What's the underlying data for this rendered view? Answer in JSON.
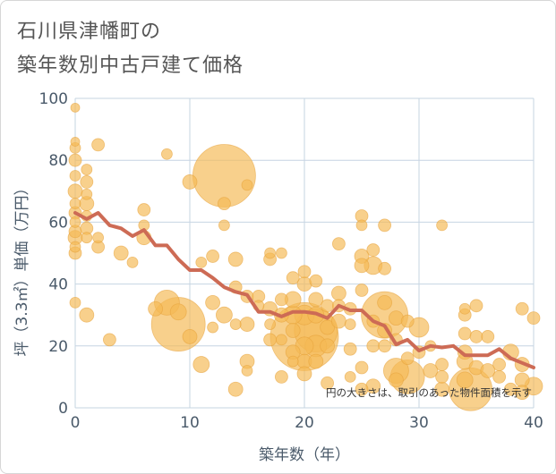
{
  "title_line1": "石川県津幡町の",
  "title_line2": "築年数別中古戸建て価格",
  "colors": {
    "bubble_fill": "#f5b955",
    "bubble_stroke": "#e6a23a",
    "line": "#cd6b55",
    "grid": "#c6d4e2",
    "axis_text": "#4a5a6a"
  },
  "chart_data": {
    "type": "scatter",
    "title": "石川県津幡町の築年数別中古戸建て価格",
    "xlabel": "築年数（年）",
    "ylabel": "坪（3.3㎡）単価（万円）",
    "xlim": [
      0,
      40
    ],
    "ylim": [
      0,
      100
    ],
    "xticks": [
      "0",
      "10",
      "20",
      "30",
      "40"
    ],
    "yticks": [
      "0",
      "20",
      "40",
      "60",
      "80",
      "100"
    ],
    "note": "円の大きさは、取引のあった物件面積を示す",
    "points": [
      {
        "x": 0,
        "y": 97,
        "s": 5
      },
      {
        "x": 0,
        "y": 86,
        "s": 5
      },
      {
        "x": 0,
        "y": 84,
        "s": 6
      },
      {
        "x": 0,
        "y": 80,
        "s": 7
      },
      {
        "x": 0,
        "y": 75,
        "s": 6
      },
      {
        "x": 0,
        "y": 70,
        "s": 8
      },
      {
        "x": 0,
        "y": 66,
        "s": 6
      },
      {
        "x": 0,
        "y": 63,
        "s": 7
      },
      {
        "x": 0,
        "y": 60,
        "s": 6
      },
      {
        "x": 0,
        "y": 57,
        "s": 7
      },
      {
        "x": 0,
        "y": 55,
        "s": 8
      },
      {
        "x": 0,
        "y": 52,
        "s": 6
      },
      {
        "x": 0,
        "y": 50,
        "s": 7
      },
      {
        "x": 0,
        "y": 34,
        "s": 6
      },
      {
        "x": 1,
        "y": 77,
        "s": 6
      },
      {
        "x": 1,
        "y": 73,
        "s": 7
      },
      {
        "x": 1,
        "y": 69,
        "s": 6
      },
      {
        "x": 1,
        "y": 66,
        "s": 8
      },
      {
        "x": 1,
        "y": 62,
        "s": 6
      },
      {
        "x": 1,
        "y": 58,
        "s": 7
      },
      {
        "x": 1,
        "y": 55,
        "s": 6
      },
      {
        "x": 1,
        "y": 30,
        "s": 8
      },
      {
        "x": 2,
        "y": 85,
        "s": 7
      },
      {
        "x": 2,
        "y": 55,
        "s": 6
      },
      {
        "x": 2,
        "y": 52,
        "s": 7
      },
      {
        "x": 3,
        "y": 22,
        "s": 7
      },
      {
        "x": 4,
        "y": 50,
        "s": 8
      },
      {
        "x": 5,
        "y": 47,
        "s": 6
      },
      {
        "x": 6,
        "y": 64,
        "s": 7
      },
      {
        "x": 6,
        "y": 59,
        "s": 6
      },
      {
        "x": 6,
        "y": 55,
        "s": 8
      },
      {
        "x": 7,
        "y": 32,
        "s": 8
      },
      {
        "x": 8,
        "y": 34,
        "s": 14
      },
      {
        "x": 8,
        "y": 82,
        "s": 6
      },
      {
        "x": 9,
        "y": 31,
        "s": 9
      },
      {
        "x": 9,
        "y": 27,
        "s": 30
      },
      {
        "x": 10,
        "y": 73,
        "s": 8
      },
      {
        "x": 10,
        "y": 23,
        "s": 8
      },
      {
        "x": 11,
        "y": 14,
        "s": 9
      },
      {
        "x": 11,
        "y": 47,
        "s": 6
      },
      {
        "x": 12,
        "y": 49,
        "s": 7
      },
      {
        "x": 12,
        "y": 34,
        "s": 8
      },
      {
        "x": 12,
        "y": 26,
        "s": 6
      },
      {
        "x": 13,
        "y": 75,
        "s": 35
      },
      {
        "x": 13,
        "y": 66,
        "s": 7
      },
      {
        "x": 13,
        "y": 59,
        "s": 6
      },
      {
        "x": 13,
        "y": 30,
        "s": 9
      },
      {
        "x": 14,
        "y": 48,
        "s": 8
      },
      {
        "x": 14,
        "y": 39,
        "s": 7
      },
      {
        "x": 14,
        "y": 27,
        "s": 6
      },
      {
        "x": 14,
        "y": 6,
        "s": 8
      },
      {
        "x": 15,
        "y": 72,
        "s": 6
      },
      {
        "x": 15,
        "y": 36,
        "s": 7
      },
      {
        "x": 15,
        "y": 27,
        "s": 8
      },
      {
        "x": 15,
        "y": 15,
        "s": 8
      },
      {
        "x": 15,
        "y": 12,
        "s": 6
      },
      {
        "x": 16,
        "y": 36,
        "s": 7
      },
      {
        "x": 16,
        "y": 33,
        "s": 6
      },
      {
        "x": 17,
        "y": 50,
        "s": 6
      },
      {
        "x": 17,
        "y": 48,
        "s": 7
      },
      {
        "x": 17,
        "y": 32,
        "s": 8
      },
      {
        "x": 17,
        "y": 27,
        "s": 6
      },
      {
        "x": 17,
        "y": 22,
        "s": 7
      },
      {
        "x": 18,
        "y": 50,
        "s": 6
      },
      {
        "x": 18,
        "y": 35,
        "s": 7
      },
      {
        "x": 18,
        "y": 30,
        "s": 8
      },
      {
        "x": 18,
        "y": 22,
        "s": 6
      },
      {
        "x": 18,
        "y": 10,
        "s": 7
      },
      {
        "x": 19,
        "y": 42,
        "s": 7
      },
      {
        "x": 19,
        "y": 35,
        "s": 9
      },
      {
        "x": 19,
        "y": 30,
        "s": 10
      },
      {
        "x": 19,
        "y": 25,
        "s": 8
      },
      {
        "x": 19,
        "y": 18,
        "s": 8
      },
      {
        "x": 19,
        "y": 15,
        "s": 6
      },
      {
        "x": 20,
        "y": 44,
        "s": 7
      },
      {
        "x": 20,
        "y": 40,
        "s": 8
      },
      {
        "x": 20,
        "y": 30,
        "s": 11
      },
      {
        "x": 20,
        "y": 23,
        "s": 38
      },
      {
        "x": 20,
        "y": 20,
        "s": 10
      },
      {
        "x": 20,
        "y": 15,
        "s": 8
      },
      {
        "x": 20,
        "y": 11,
        "s": 8
      },
      {
        "x": 21,
        "y": 41,
        "s": 7
      },
      {
        "x": 21,
        "y": 35,
        "s": 8
      },
      {
        "x": 21,
        "y": 30,
        "s": 9
      },
      {
        "x": 21,
        "y": 25,
        "s": 24
      },
      {
        "x": 21,
        "y": 20,
        "s": 12
      },
      {
        "x": 21,
        "y": 15,
        "s": 8
      },
      {
        "x": 22,
        "y": 33,
        "s": 7
      },
      {
        "x": 22,
        "y": 26,
        "s": 8
      },
      {
        "x": 22,
        "y": 20,
        "s": 8
      },
      {
        "x": 22,
        "y": 8,
        "s": 7
      },
      {
        "x": 23,
        "y": 53,
        "s": 7
      },
      {
        "x": 23,
        "y": 37,
        "s": 8
      },
      {
        "x": 23,
        "y": 33,
        "s": 7
      },
      {
        "x": 23,
        "y": 28,
        "s": 8
      },
      {
        "x": 24,
        "y": 32,
        "s": 7
      },
      {
        "x": 24,
        "y": 27,
        "s": 6
      },
      {
        "x": 24,
        "y": 19,
        "s": 7
      },
      {
        "x": 24,
        "y": 10,
        "s": 6
      },
      {
        "x": 25,
        "y": 62,
        "s": 7
      },
      {
        "x": 25,
        "y": 59,
        "s": 6
      },
      {
        "x": 25,
        "y": 49,
        "s": 8
      },
      {
        "x": 25,
        "y": 46,
        "s": 8
      },
      {
        "x": 25,
        "y": 38,
        "s": 7
      },
      {
        "x": 25,
        "y": 13,
        "s": 7
      },
      {
        "x": 25,
        "y": 6,
        "s": 7
      },
      {
        "x": 26,
        "y": 51,
        "s": 7
      },
      {
        "x": 26,
        "y": 46,
        "s": 10
      },
      {
        "x": 26,
        "y": 28,
        "s": 7
      },
      {
        "x": 26,
        "y": 20,
        "s": 7
      },
      {
        "x": 26,
        "y": 7,
        "s": 8
      },
      {
        "x": 27,
        "y": 59,
        "s": 7
      },
      {
        "x": 27,
        "y": 45,
        "s": 7
      },
      {
        "x": 27,
        "y": 34,
        "s": 8
      },
      {
        "x": 27,
        "y": 30,
        "s": 26
      },
      {
        "x": 27,
        "y": 25,
        "s": 8
      },
      {
        "x": 27,
        "y": 20,
        "s": 7
      },
      {
        "x": 28,
        "y": 29,
        "s": 8
      },
      {
        "x": 28,
        "y": 22,
        "s": 7
      },
      {
        "x": 28,
        "y": 12,
        "s": 14
      },
      {
        "x": 28,
        "y": 9,
        "s": 8
      },
      {
        "x": 29,
        "y": 10,
        "s": 19
      },
      {
        "x": 29,
        "y": 16,
        "s": 7
      },
      {
        "x": 29,
        "y": 28,
        "s": 7
      },
      {
        "x": 30,
        "y": 26,
        "s": 11
      },
      {
        "x": 30,
        "y": 18,
        "s": 7
      },
      {
        "x": 31,
        "y": 12,
        "s": 8
      },
      {
        "x": 31,
        "y": 20,
        "s": 6
      },
      {
        "x": 32,
        "y": 59,
        "s": 6
      },
      {
        "x": 32,
        "y": 14,
        "s": 7
      },
      {
        "x": 32,
        "y": 10,
        "s": 7
      },
      {
        "x": 32,
        "y": 6,
        "s": 8
      },
      {
        "x": 34,
        "y": 32,
        "s": 6
      },
      {
        "x": 34,
        "y": 30,
        "s": 7
      },
      {
        "x": 34,
        "y": 24,
        "s": 7
      },
      {
        "x": 34,
        "y": 18,
        "s": 8
      },
      {
        "x": 34,
        "y": 15,
        "s": 9
      },
      {
        "x": 34,
        "y": 9,
        "s": 9
      },
      {
        "x": 34.5,
        "y": 6,
        "s": 24
      },
      {
        "x": 35,
        "y": 33,
        "s": 7
      },
      {
        "x": 35,
        "y": 23,
        "s": 7
      },
      {
        "x": 35,
        "y": 13,
        "s": 8
      },
      {
        "x": 36,
        "y": 23,
        "s": 7
      },
      {
        "x": 36,
        "y": 12,
        "s": 8
      },
      {
        "x": 37,
        "y": 14,
        "s": 7
      },
      {
        "x": 37,
        "y": 10,
        "s": 7
      },
      {
        "x": 38,
        "y": 18,
        "s": 9
      },
      {
        "x": 38,
        "y": 6,
        "s": 7
      },
      {
        "x": 39,
        "y": 32,
        "s": 7
      },
      {
        "x": 39,
        "y": 14,
        "s": 8
      },
      {
        "x": 39,
        "y": 9,
        "s": 8
      },
      {
        "x": 39,
        "y": 5,
        "s": 8
      },
      {
        "x": 40,
        "y": 29,
        "s": 7
      },
      {
        "x": 40,
        "y": 7,
        "s": 10
      }
    ],
    "line": {
      "x": [
        0,
        1,
        2,
        3,
        4,
        5,
        6,
        7,
        8,
        9,
        10,
        11,
        12,
        13,
        14,
        15,
        16,
        17,
        18,
        19,
        20,
        21,
        22,
        23,
        24,
        25,
        26,
        27,
        28,
        29,
        30,
        31,
        32,
        33,
        34,
        35,
        36,
        37,
        38,
        39,
        40
      ],
      "y": [
        63,
        61,
        63,
        59,
        58,
        55.5,
        57.5,
        52.5,
        52.5,
        48,
        44.5,
        44.5,
        42,
        39,
        37.5,
        36.5,
        31,
        31,
        29.5,
        31,
        31,
        30.5,
        29,
        33,
        31.5,
        31.5,
        28,
        26.5,
        20.5,
        22,
        18.5,
        20,
        19.5,
        20,
        17,
        17,
        17,
        19,
        16,
        14.5,
        13
      ]
    }
  }
}
